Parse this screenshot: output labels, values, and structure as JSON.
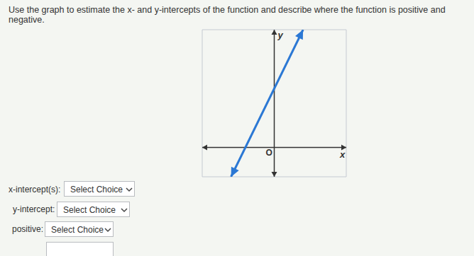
{
  "question": "Use the graph to estimate the x- and y-intercepts of the function and describe where the function is positive and negative.",
  "chart_data": {
    "type": "line",
    "x": [
      -3,
      2
    ],
    "values": [
      -2,
      8
    ],
    "color": "#2b78d4",
    "marker": "arrow",
    "xlim": [
      -5,
      5
    ],
    "ylim": [
      -2,
      8
    ],
    "xticks": [
      -5,
      -4,
      -3,
      -2,
      -1,
      0,
      1,
      2,
      3,
      4,
      5
    ],
    "yticks": [
      -2,
      -1,
      0,
      1,
      2,
      3,
      4,
      5,
      6,
      7,
      8
    ],
    "grid": true,
    "tick_labels": false,
    "x_label": "x",
    "y_label": "y",
    "annotation": "O"
  },
  "answers": [
    {
      "label": "x-intercept(s):",
      "choice": "Select Choice"
    },
    {
      "label": "y-intercept:",
      "choice": "Select Choice"
    },
    {
      "label": "positive:",
      "choice": "Select Choice"
    }
  ]
}
